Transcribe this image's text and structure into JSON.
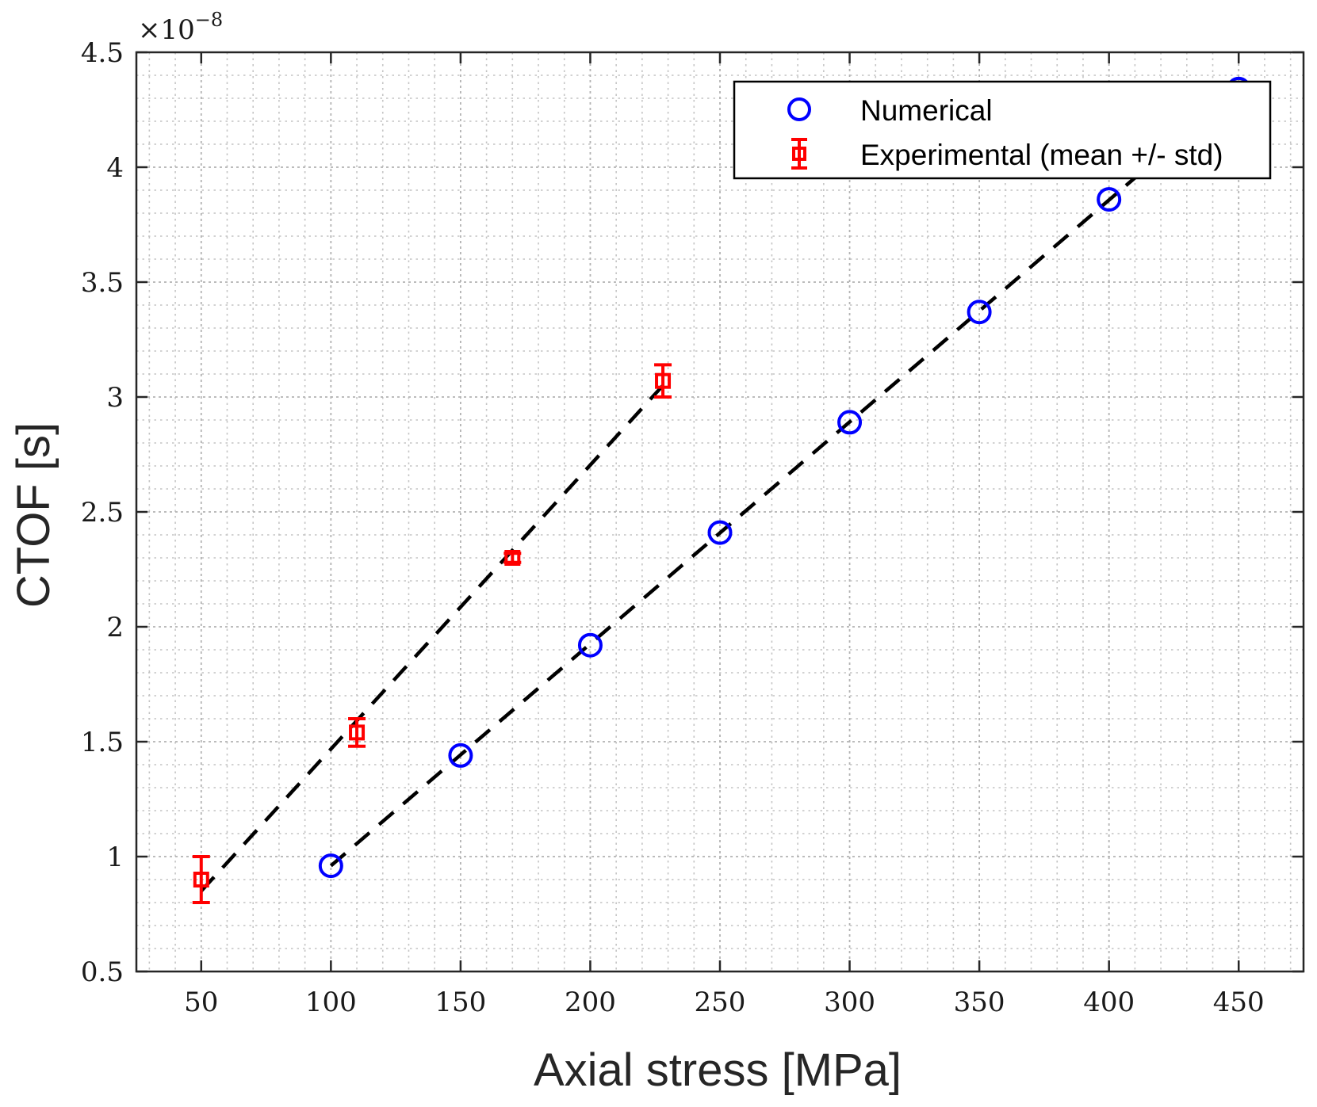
{
  "chart_data": {
    "type": "scatter",
    "xlabel": "Axial stress [MPa]",
    "ylabel": "CTOF [s]",
    "xlim": [
      25,
      475
    ],
    "ylim": [
      0.5,
      4.5
    ],
    "y_scale_multiplier": "×10",
    "y_scale_exponent": "−8",
    "x_ticks": [
      50,
      100,
      150,
      200,
      250,
      300,
      350,
      400,
      450
    ],
    "x_tick_labels": [
      "50",
      "100",
      "150",
      "200",
      "250",
      "300",
      "350",
      "400",
      "450"
    ],
    "y_ticks": [
      0.5,
      1,
      1.5,
      2,
      2.5,
      3,
      3.5,
      4,
      4.5
    ],
    "y_tick_labels": [
      "0.5",
      "1",
      "1.5",
      "2",
      "2.5",
      "3",
      "3.5",
      "4",
      "4.5"
    ],
    "grid": true,
    "minor_grid": true,
    "legend_position": "top-right",
    "series": [
      {
        "name": "Numerical",
        "marker": "circle",
        "color": "#0000ff",
        "x": [
          100,
          150,
          200,
          250,
          300,
          350,
          400,
          450
        ],
        "y": [
          0.96,
          1.44,
          1.92,
          2.41,
          2.89,
          3.37,
          3.86,
          4.34
        ]
      },
      {
        "name": "Experimental (mean +/- std)",
        "marker": "square",
        "color": "#ff0000",
        "x": [
          50,
          110,
          170,
          228
        ],
        "y": [
          0.9,
          1.54,
          2.3,
          3.07
        ],
        "err": [
          0.1,
          0.06,
          0.02,
          0.07
        ]
      }
    ],
    "fit_lines": [
      {
        "name": "numerical-fit",
        "color": "#000000",
        "style": "dashed",
        "x": [
          100,
          450
        ],
        "y": [
          0.96,
          4.34
        ]
      },
      {
        "name": "experimental-fit",
        "color": "#000000",
        "style": "dashed",
        "x": [
          50,
          228
        ],
        "y": [
          0.85,
          3.05
        ]
      }
    ]
  }
}
